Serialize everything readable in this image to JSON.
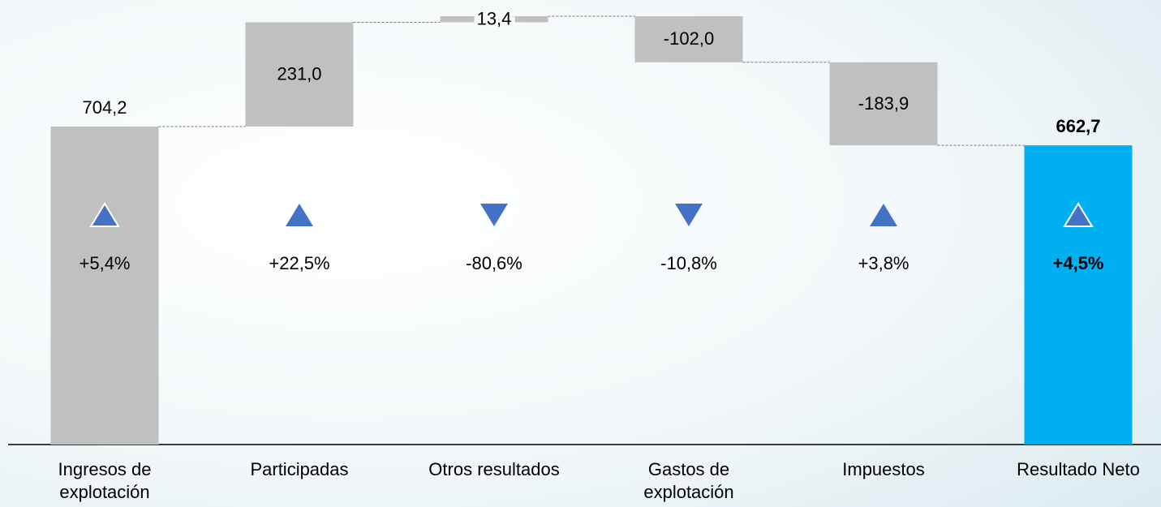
{
  "chart_data": {
    "type": "waterfall",
    "categories": [
      "Ingresos de explotación",
      "Participadas",
      "Otros resultados",
      "Gastos de explotación",
      "Impuestos",
      "Resultado Neto"
    ],
    "measures": [
      "absolute",
      "relative",
      "relative",
      "relative",
      "relative",
      "total"
    ],
    "values": [
      704.2,
      231.0,
      13.4,
      -102.0,
      -183.9,
      662.7
    ],
    "value_labels": [
      "704,2",
      "231,0",
      "13,4",
      "-102,0",
      "-183,9",
      "662,7"
    ],
    "changes": [
      5.4,
      22.5,
      -80.6,
      -10.8,
      3.8,
      4.5
    ],
    "change_labels": [
      "+5,4%",
      "+22,5%",
      "-80,6%",
      "-10,8%",
      "+3,8%",
      "+4,5%"
    ],
    "colors": {
      "absolute": "#c0c0c0",
      "relative": "#c0c0c0",
      "total": "#00b0f0",
      "arrow": "#4472c4"
    }
  }
}
